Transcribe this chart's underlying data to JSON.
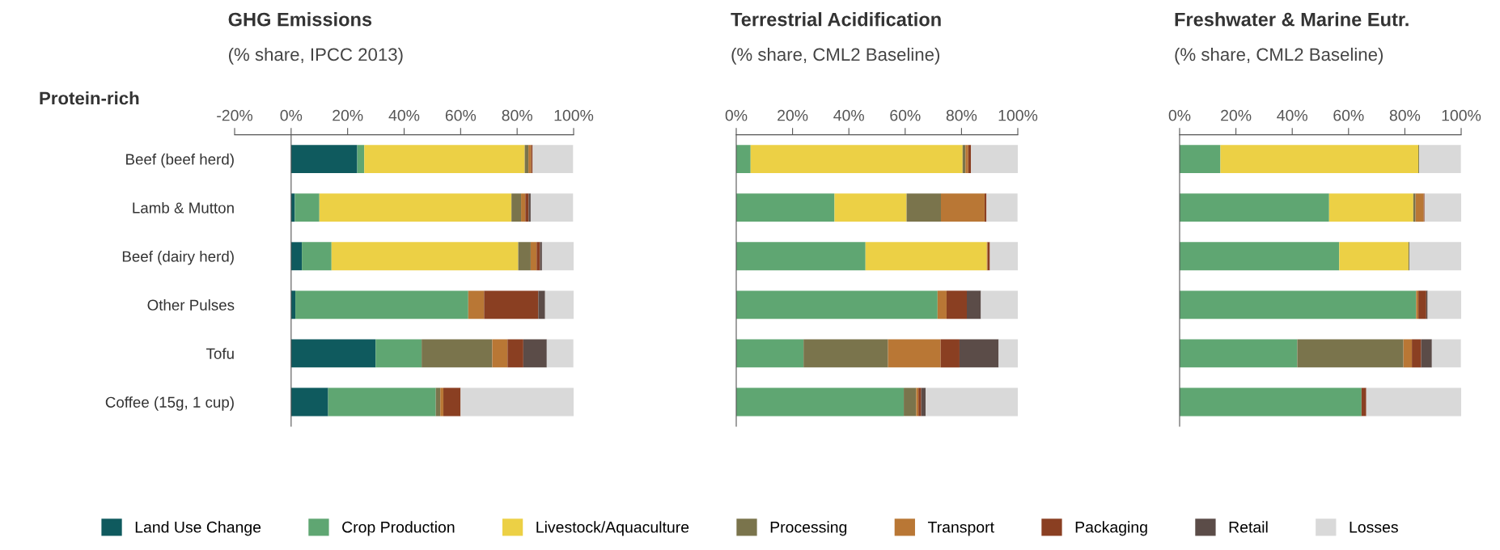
{
  "chart_data": [
    {
      "type": "bar",
      "orientation": "horizontal",
      "stacked": true,
      "title": "GHG Emissions",
      "subtitle": "(% share, IPCC 2013)",
      "ylabel": "Protein-rich",
      "legend": "bottom",
      "categories": [
        "Beef (beef herd)",
        "Lamb & Mutton",
        "Beef (dairy herd)",
        "Other Pulses",
        "Tofu",
        "Coffee (15g, 1 cup)"
      ],
      "xlim": [
        -20,
        100
      ],
      "xticks": [
        {
          "value": -20,
          "label": "-20%"
        },
        {
          "value": 0,
          "label": "0%"
        },
        {
          "value": 20,
          "label": "20%"
        },
        {
          "value": 40,
          "label": "40%"
        },
        {
          "value": 60,
          "label": "60%"
        },
        {
          "value": 80,
          "label": "80%"
        },
        {
          "value": 100,
          "label": "100%"
        }
      ],
      "series": [
        {
          "name": "Land Use Change",
          "color": "#0f5a5e",
          "values": [
            23.4,
            1.3,
            3.8,
            1.5,
            29.9,
            13.1
          ]
        },
        {
          "name": "Crop Production",
          "color": "#5fa672",
          "values": [
            2.5,
            8.7,
            10.5,
            61.2,
            16.3,
            38.1
          ]
        },
        {
          "name": "Livestock/Aquaculture",
          "color": "#ecd045",
          "values": [
            56.8,
            68,
            66.1,
            0,
            0,
            0
          ]
        },
        {
          "name": "Processing",
          "color": "#7a744c",
          "values": [
            1.3,
            3.4,
            4.4,
            0,
            25,
            1.6
          ]
        },
        {
          "name": "Transport",
          "color": "#b97735",
          "values": [
            1,
            1.5,
            2.1,
            5.6,
            5.4,
            1.1
          ]
        },
        {
          "name": "Packaging",
          "color": "#8a3f22",
          "values": [
            0.5,
            1.2,
            1.2,
            19.2,
            5.6,
            6.1
          ]
        },
        {
          "name": "Retail",
          "color": "#5b4c48",
          "values": [
            0,
            0.7,
            0.7,
            2.4,
            8.3,
            0
          ]
        },
        {
          "name": "Losses",
          "color": "#d9d9d9",
          "values": [
            14.3,
            15,
            11.3,
            10.2,
            9.4,
            40.1
          ]
        }
      ]
    },
    {
      "type": "bar",
      "orientation": "horizontal",
      "stacked": true,
      "title": "Terrestrial Acidification",
      "subtitle": "(% share, CML2 Baseline)",
      "tick_labels": "x",
      "categories": [
        null,
        null,
        null,
        null,
        null,
        null
      ],
      "xlim": [
        0,
        100
      ],
      "xticks": [
        {
          "value": 0,
          "label": "0%"
        },
        {
          "value": 20,
          "label": "20%"
        },
        {
          "value": 40,
          "label": "40%"
        },
        {
          "value": 60,
          "label": "60%"
        },
        {
          "value": 80,
          "label": "80%"
        },
        {
          "value": 100,
          "label": "100%"
        }
      ],
      "series": [
        {
          "color": "#0f5a5e",
          "values": [
            0,
            0,
            0,
            0,
            0,
            0
          ]
        },
        {
          "color": "#5fa672",
          "values": [
            5.1,
            34.9,
            45.9,
            71.5,
            23.9,
            59.5
          ]
        },
        {
          "color": "#ecd045",
          "values": [
            75.3,
            25.6,
            43.1,
            0,
            0,
            0
          ]
        },
        {
          "color": "#7a744c",
          "values": [
            1,
            12.2,
            0,
            0,
            30,
            4.4
          ]
        },
        {
          "color": "#b97735",
          "values": [
            1,
            15.5,
            0.3,
            3.2,
            18.7,
            0.8
          ]
        },
        {
          "color": "#8a3f22",
          "values": [
            1,
            0.7,
            0.8,
            7.2,
            6.7,
            1
          ]
        },
        {
          "color": "#5b4c48",
          "values": [
            0,
            0,
            0,
            5,
            13.9,
            1.6
          ]
        },
        {
          "color": "#d9d9d9",
          "values": [
            16.7,
            11,
            9.9,
            13.2,
            6.9,
            32.7
          ]
        }
      ]
    },
    {
      "type": "bar",
      "orientation": "horizontal",
      "stacked": true,
      "title": "Freshwater & Marine Eutr.",
      "subtitle": "(% share, CML2 Baseline)",
      "tick_labels": "x",
      "categories": [
        null,
        null,
        null,
        null,
        null,
        null
      ],
      "xlim": [
        0,
        100
      ],
      "xticks": [
        {
          "value": 0,
          "label": "0%"
        },
        {
          "value": 20,
          "label": "20%"
        },
        {
          "value": 40,
          "label": "40%"
        },
        {
          "value": 60,
          "label": "60%"
        },
        {
          "value": 80,
          "label": "80%"
        },
        {
          "value": 100,
          "label": "100%"
        }
      ],
      "series": [
        {
          "color": "#0f5a5e",
          "values": [
            0,
            0,
            0,
            0,
            0,
            0
          ]
        },
        {
          "color": "#5fa672",
          "values": [
            14.5,
            53.1,
            56.7,
            84,
            41.8,
            64.6
          ]
        },
        {
          "color": "#ecd045",
          "values": [
            70.3,
            29.9,
            24.6,
            0,
            0,
            0
          ]
        },
        {
          "color": "#7a744c",
          "values": [
            0.3,
            0.8,
            0.3,
            0,
            37.7,
            0
          ]
        },
        {
          "color": "#b97735",
          "values": [
            0,
            2.9,
            0,
            0.8,
            3,
            0
          ]
        },
        {
          "color": "#8a3f22",
          "values": [
            0,
            0.3,
            0,
            2.8,
            3.3,
            1.7
          ]
        },
        {
          "color": "#5b4c48",
          "values": [
            0,
            0,
            0,
            0.5,
            3.8,
            0
          ]
        },
        {
          "color": "#d9d9d9",
          "values": [
            14.8,
            13.1,
            18.5,
            12,
            10.3,
            33.7
          ]
        }
      ]
    }
  ]
}
